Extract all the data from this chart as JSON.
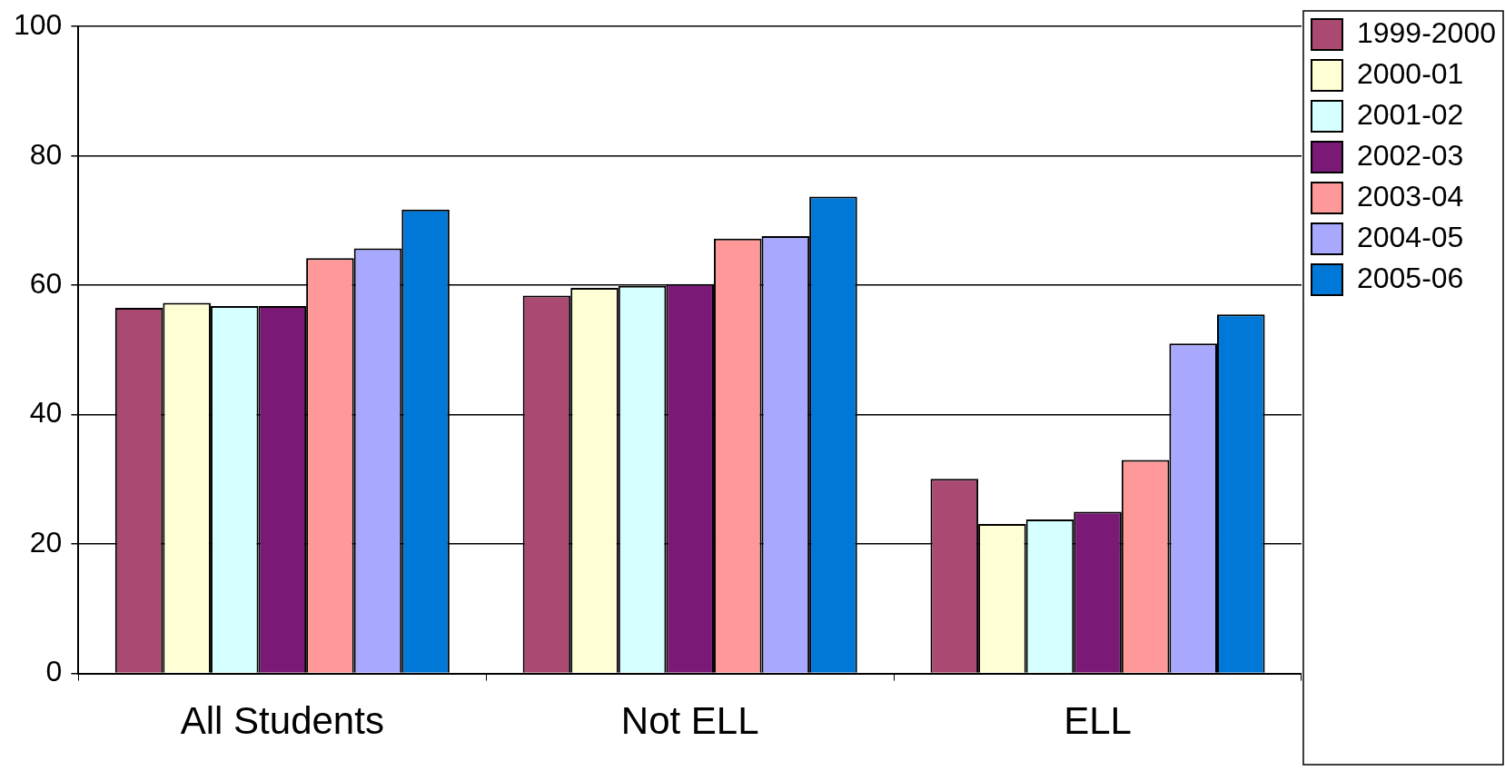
{
  "chart_data": {
    "type": "bar",
    "categories": [
      "All Students",
      "Not ELL",
      "ELL"
    ],
    "series": [
      {
        "name": "1999-2000",
        "color": "#aa4a72",
        "values": [
          56.5,
          58.4,
          30.1
        ]
      },
      {
        "name": "2000-01",
        "color": "#ffffd6",
        "values": [
          57.3,
          59.6,
          23.1
        ]
      },
      {
        "name": "2001-02",
        "color": "#d6ffff",
        "values": [
          56.8,
          59.9,
          23.8
        ]
      },
      {
        "name": "2002-03",
        "color": "#7a1a76",
        "values": [
          56.8,
          60.2,
          25.0
        ]
      },
      {
        "name": "2003-04",
        "color": "#ff9999",
        "values": [
          64.2,
          67.2,
          33.0
        ]
      },
      {
        "name": "2004-05",
        "color": "#a8a8ff",
        "values": [
          65.7,
          67.6,
          51.0
        ]
      },
      {
        "name": "2005-06",
        "color": "#0078d8",
        "values": [
          71.7,
          73.7,
          55.5
        ]
      }
    ],
    "ylim": [
      0,
      100
    ],
    "yticks": [
      0,
      20,
      40,
      60,
      80,
      100
    ],
    "grid": "y",
    "legend": "top right"
  }
}
